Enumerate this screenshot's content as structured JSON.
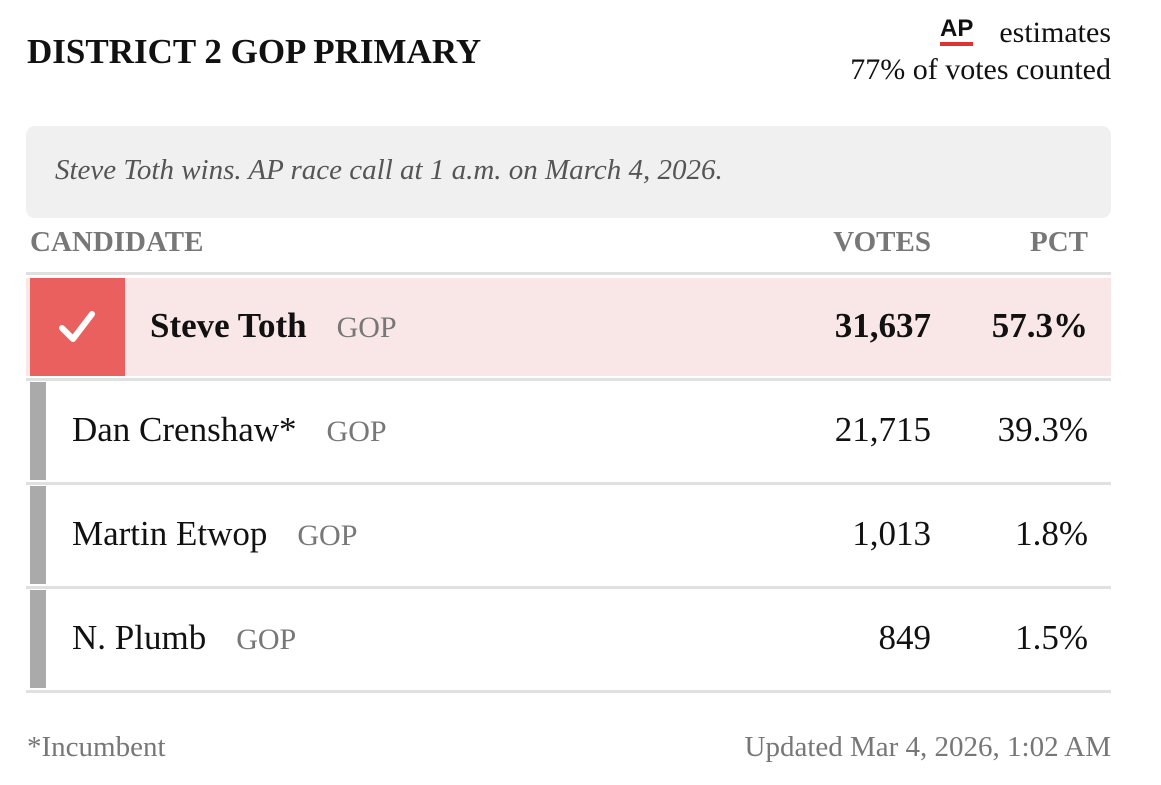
{
  "header": {
    "title": "DISTRICT 2 GOP PRIMARY",
    "source_logo": "AP",
    "source_note": "estimates",
    "reporting": "77% of votes counted"
  },
  "race_call": "Steve Toth wins. AP race call at 1 a.m. on March 4, 2026.",
  "table": {
    "columns": [
      "CANDIDATE",
      "VOTES",
      "PCT"
    ],
    "rows": [
      {
        "name": "Steve Toth",
        "party": "GOP",
        "votes": "31,637",
        "pct": "57.3%",
        "winner": true
      },
      {
        "name": "Dan Crenshaw*",
        "party": "GOP",
        "votes": "21,715",
        "pct": "39.3%",
        "winner": false
      },
      {
        "name": "Martin Etwop",
        "party": "GOP",
        "votes": "1,013",
        "pct": "1.8%",
        "winner": false
      },
      {
        "name": "N. Plumb",
        "party": "GOP",
        "votes": "849",
        "pct": "1.5%",
        "winner": false
      }
    ]
  },
  "footer": {
    "note": "*Incumbent",
    "updated": "Updated Mar 4, 2026, 1:02 AM"
  }
}
